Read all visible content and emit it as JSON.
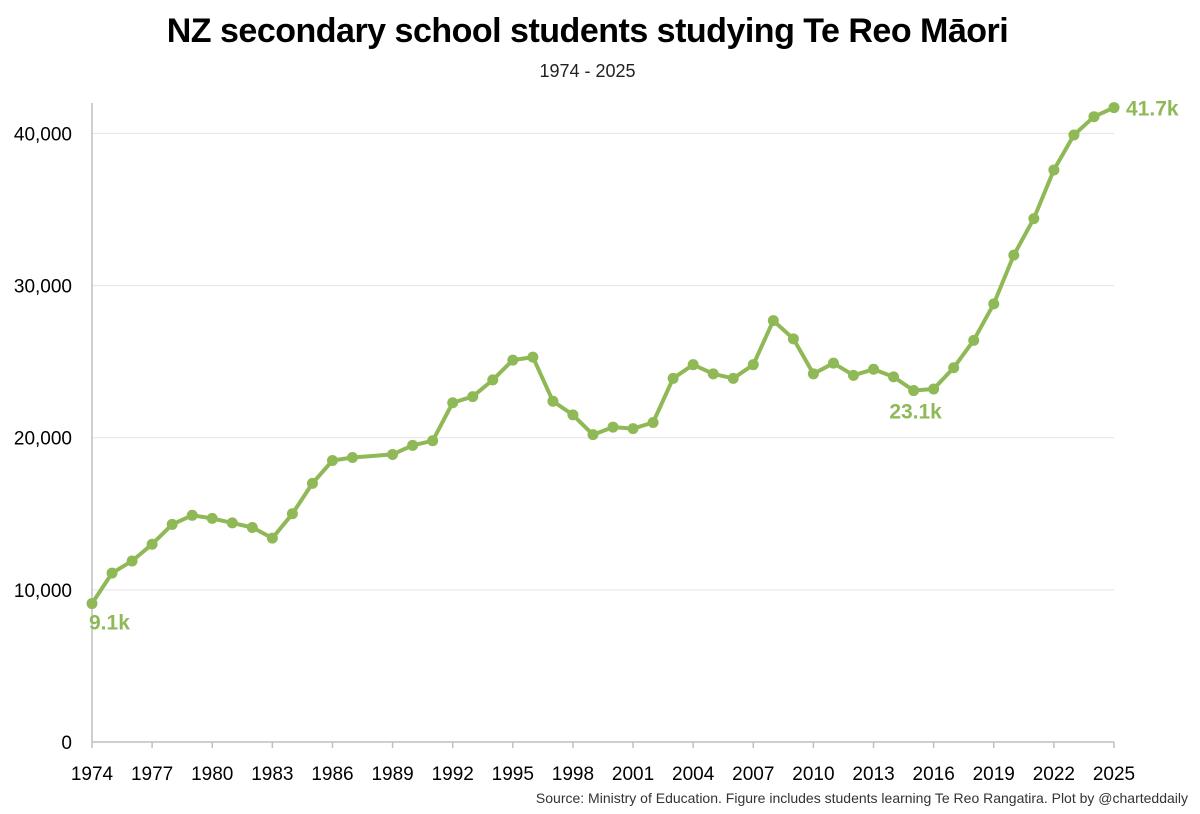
{
  "chart_data": {
    "type": "line",
    "title": "NZ secondary school students studying Te Reo Māori",
    "subtitle": "1974 - 2025",
    "xlabel": "",
    "ylabel": "",
    "xlim": [
      1974,
      2025
    ],
    "ylim": [
      0,
      42000
    ],
    "y_ticks": [
      0,
      10000,
      20000,
      30000,
      40000
    ],
    "y_tick_labels": [
      "0",
      "10,000",
      "20,000",
      "30,000",
      "40,000"
    ],
    "x_ticks": [
      1974,
      1977,
      1980,
      1983,
      1986,
      1989,
      1992,
      1995,
      1998,
      2001,
      2004,
      2007,
      2010,
      2013,
      2016,
      2019,
      2022,
      2025
    ],
    "x_tick_labels": [
      "1974",
      "1977",
      "1980",
      "1983",
      "1986",
      "1989",
      "1992",
      "1995",
      "1998",
      "2001",
      "2004",
      "2007",
      "2010",
      "2013",
      "2016",
      "2019",
      "2022",
      "2025"
    ],
    "grid": true,
    "series": [
      {
        "name": "Students studying Te Reo Māori",
        "color": "#8fb957",
        "x": [
          1974,
          1975,
          1976,
          1977,
          1978,
          1979,
          1980,
          1981,
          1982,
          1983,
          1984,
          1985,
          1986,
          1987,
          1989,
          1990,
          1991,
          1992,
          1993,
          1994,
          1995,
          1996,
          1997,
          1998,
          1999,
          2000,
          2001,
          2002,
          2003,
          2004,
          2005,
          2006,
          2007,
          2008,
          2009,
          2010,
          2011,
          2012,
          2013,
          2014,
          2015,
          2016,
          2017,
          2018,
          2019,
          2020,
          2021,
          2022,
          2023,
          2024,
          2025
        ],
        "values": [
          9100,
          11100,
          11900,
          13000,
          14300,
          14900,
          14700,
          14400,
          14100,
          13400,
          15000,
          17000,
          18500,
          18700,
          18900,
          19500,
          19800,
          22300,
          22700,
          23800,
          25100,
          25300,
          22400,
          21500,
          20200,
          20700,
          20600,
          21000,
          23900,
          24800,
          24200,
          23900,
          24800,
          27700,
          26500,
          24200,
          24900,
          24100,
          24500,
          24000,
          23100,
          23200,
          24600,
          26400,
          28800,
          32000,
          34400,
          37600,
          39900,
          41100,
          41700
        ]
      }
    ],
    "annotations": [
      {
        "x": 1974,
        "y": 9100,
        "text": "9.1k"
      },
      {
        "x": 2015,
        "y": 23100,
        "text": "23.1k"
      },
      {
        "x": 2025,
        "y": 41700,
        "text": "41.7k"
      }
    ],
    "source": "Source: Ministry of Education. Figure includes students learning Te Reo Rangatira. Plot by @charteddaily"
  }
}
